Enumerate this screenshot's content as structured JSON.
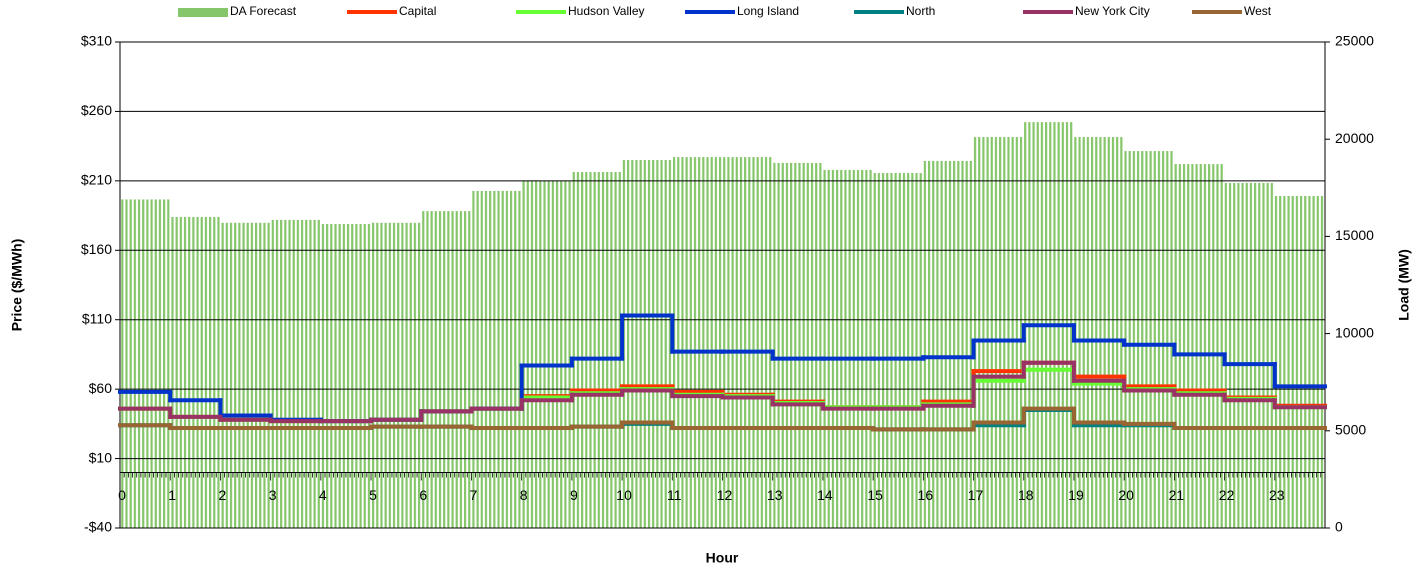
{
  "chart_data": {
    "type": "combo",
    "x_label": "Hour",
    "y_label": "Price ($/MWh)",
    "y2_label": "Load (MW)",
    "categories": [
      "0",
      "1",
      "2",
      "3",
      "4",
      "5",
      "6",
      "7",
      "8",
      "9",
      "10",
      "11",
      "12",
      "13",
      "14",
      "15",
      "16",
      "17",
      "18",
      "19",
      "20",
      "21",
      "22",
      "23"
    ],
    "ylim": [
      -40,
      310
    ],
    "yticks": [
      {
        "value": -40,
        "label": "-$40"
      },
      {
        "value": 10,
        "label": "$10"
      },
      {
        "value": 60,
        "label": "$60"
      },
      {
        "value": 110,
        "label": "$110"
      },
      {
        "value": 160,
        "label": "$160"
      },
      {
        "value": 210,
        "label": "$210"
      },
      {
        "value": 260,
        "label": "$260"
      },
      {
        "value": 310,
        "label": "$310"
      }
    ],
    "y2lim": [
      0,
      25000
    ],
    "y2ticks": [
      0,
      5000,
      10000,
      15000,
      20000,
      25000
    ],
    "grid": true,
    "legend": "top",
    "series": [
      {
        "name": "DA Forecast",
        "type": "bar",
        "axis": "y2",
        "color": "#86c66a",
        "values": [
          16900,
          16000,
          15700,
          15850,
          15640,
          15700,
          16300,
          17340,
          17850,
          18310,
          18930,
          19080,
          19080,
          18780,
          18420,
          18260,
          18880,
          20110,
          20880,
          20110,
          19390,
          18720,
          17750,
          17080
        ]
      },
      {
        "name": "Capital",
        "type": "line",
        "color": "#ff3300",
        "values": [
          46,
          40,
          38,
          37,
          37,
          38,
          44,
          46,
          55,
          59,
          62,
          58,
          56,
          51,
          47,
          47,
          51,
          73,
          79,
          69,
          62,
          59,
          54,
          48
        ]
      },
      {
        "name": "Hudson Valley",
        "type": "line",
        "color": "#66ff33",
        "values": [
          46,
          40,
          38,
          37,
          37,
          38,
          44,
          46,
          54,
          57,
          60,
          56,
          55,
          50,
          47,
          47,
          49,
          66,
          74,
          64,
          60,
          57,
          53,
          47
        ]
      },
      {
        "name": "Long Island",
        "type": "line",
        "color": "#0033cc",
        "values": [
          58,
          52,
          41,
          38,
          37,
          38,
          44,
          46,
          77,
          82,
          113,
          87,
          87,
          82,
          82,
          82,
          83,
          95,
          106,
          95,
          92,
          85,
          78,
          62
        ]
      },
      {
        "name": "North",
        "type": "line",
        "color": "#008080",
        "values": [
          34,
          32,
          32,
          32,
          32,
          33,
          33,
          32,
          32,
          33,
          35,
          32,
          32,
          32,
          32,
          31,
          31,
          34,
          45,
          34,
          34,
          32,
          32,
          32
        ]
      },
      {
        "name": "New York City",
        "type": "line",
        "color": "#993366",
        "values": [
          46,
          40,
          38,
          37,
          37,
          38,
          44,
          46,
          52,
          56,
          59,
          55,
          54,
          49,
          46,
          46,
          48,
          69,
          79,
          66,
          59,
          56,
          52,
          47
        ]
      },
      {
        "name": "West",
        "type": "line",
        "color": "#996633",
        "values": [
          34,
          32,
          32,
          32,
          32,
          33,
          33,
          32,
          32,
          33,
          36,
          32,
          32,
          32,
          32,
          31,
          31,
          36,
          46,
          36,
          35,
          32,
          32,
          32
        ]
      }
    ]
  }
}
